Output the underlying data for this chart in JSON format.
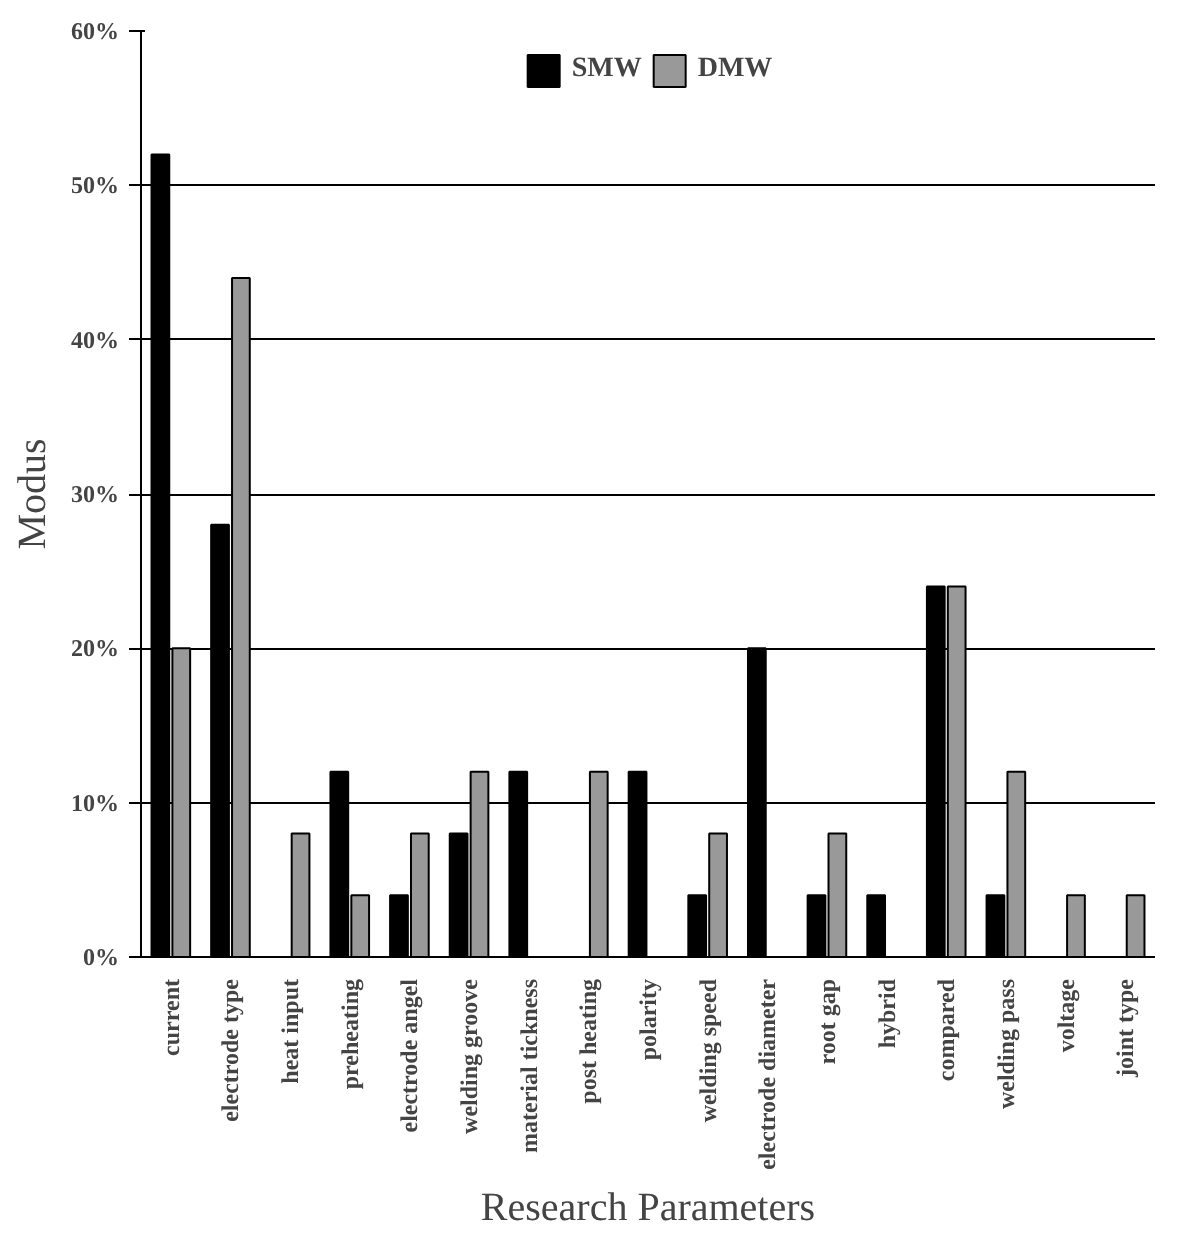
{
  "chart_data": {
    "type": "bar",
    "xlabel": "Research Parameters",
    "ylabel": "Modus",
    "categories": [
      "current",
      "electrode type",
      "heat input",
      "preheating",
      "electrode angel",
      "welding groove",
      "material tickness",
      "post heating",
      "polarity",
      "welding speed",
      "electrode diameter",
      "root gap",
      "hybrid",
      "compared",
      "welding pass",
      "voltage",
      "joint type"
    ],
    "series": [
      {
        "name": "SMW",
        "color": "#000000",
        "values": [
          52,
          28,
          0,
          12,
          4,
          8,
          12,
          0,
          12,
          4,
          20,
          4,
          4,
          24,
          4,
          0,
          0
        ]
      },
      {
        "name": "DMW",
        "color": "#999999",
        "values": [
          20,
          44,
          8,
          4,
          8,
          12,
          0,
          12,
          0,
          8,
          0,
          8,
          0,
          24,
          12,
          4,
          4
        ]
      }
    ],
    "ylim": [
      0,
      60
    ],
    "yticks": [
      {
        "value": 0,
        "label": "0%"
      },
      {
        "value": 10,
        "label": "10%"
      },
      {
        "value": 20,
        "label": "20%"
      },
      {
        "value": 30,
        "label": "30%"
      },
      {
        "value": 40,
        "label": "40%"
      },
      {
        "value": 50,
        "label": "50%"
      },
      {
        "value": 60,
        "label": "60%"
      }
    ],
    "grid": "y",
    "legend": "top"
  }
}
